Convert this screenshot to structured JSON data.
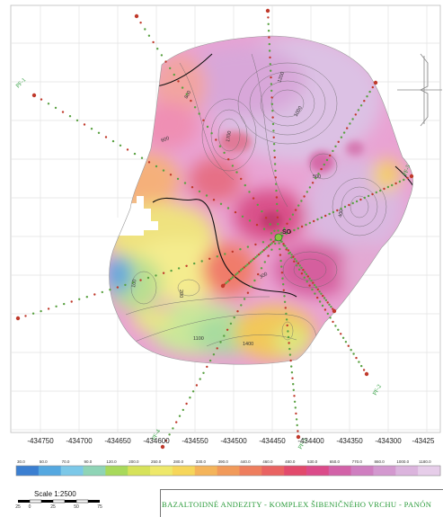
{
  "profiles": [
    {
      "id": "pf1",
      "label": "PF-1"
    },
    {
      "id": "pf2",
      "label": "PF-2"
    },
    {
      "id": "pf3",
      "label": "PF-3"
    },
    {
      "id": "pf4",
      "label": "PF-4"
    },
    {
      "id": "pf5",
      "label": "PF-5"
    }
  ],
  "center_label": "SO",
  "contour_labels": [
    "1700",
    "1200",
    "1000",
    "800",
    "600",
    "500",
    "400",
    "300",
    "200",
    "100",
    "1100",
    "1400"
  ],
  "x_axis": {
    "ticks": [
      "-434750",
      "-434700",
      "-434650",
      "-434600",
      "-434550",
      "-434500",
      "-434450",
      "-434400",
      "-434350",
      "-434300",
      "-43425"
    ]
  },
  "color_legend": {
    "values": [
      "30.0",
      "50.0",
      "70.0",
      "90.0",
      "120.0",
      "200.0",
      "250.0",
      "280.0",
      "330.0",
      "390.0",
      "440.0",
      "460.0",
      "480.0",
      "530.0",
      "650.0",
      "770.0",
      "860.0",
      "1000.0",
      "1180.0"
    ],
    "colors": [
      "#3b7fd1",
      "#55a8e0",
      "#7cc8e8",
      "#8fd4b6",
      "#a8d95b",
      "#d6e25a",
      "#eee86a",
      "#f6d65a",
      "#f4b45a",
      "#f19a5a",
      "#ee7e5e",
      "#e96362",
      "#e24a6c",
      "#db4b8a",
      "#d262a8",
      "#cf7ec0",
      "#d398cf",
      "#dbb4dd",
      "#e6cde9"
    ]
  },
  "scale": {
    "title": "Scale 1:2500",
    "numbers": [
      "25",
      "0",
      "25",
      "50",
      "75"
    ]
  },
  "formation_text": "BAZALTOIDNÉ   ANDEZITY - KOMPLEX  ŠIBENIČNÉHO VRCHU - PANÓN"
}
